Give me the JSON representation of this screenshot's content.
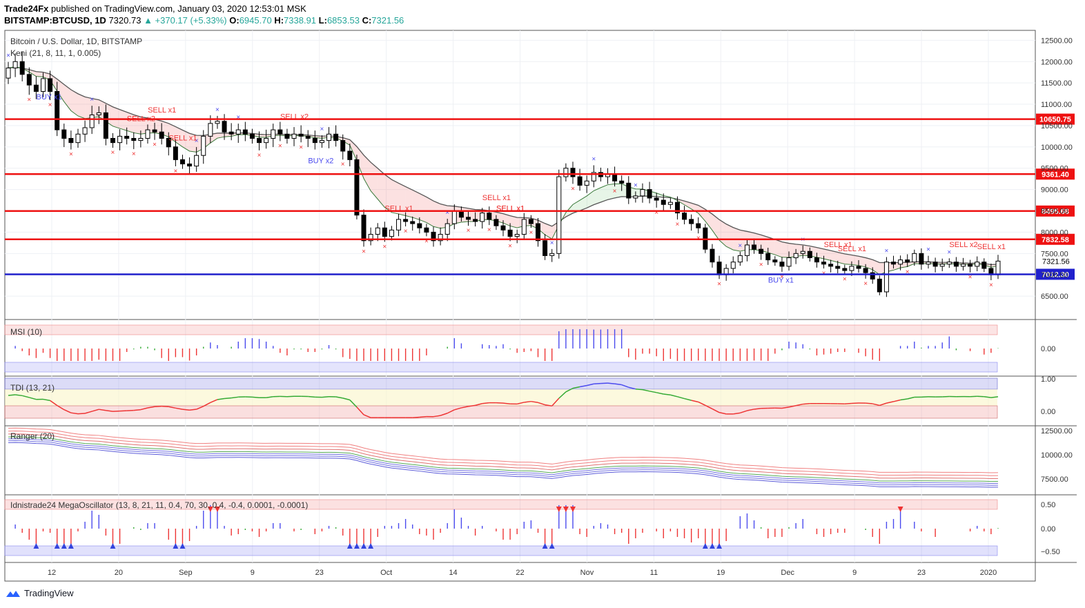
{
  "header": {
    "publisher": "Trade24Fx",
    "published_text": "published on TradingView.com, January 03, 2020 12:53:01 MSK",
    "symbol": "BITSTAMP:BTCUSD, 1D",
    "last": "7320.73",
    "change": "▲ +370.17 (+5.33%)",
    "o_label": "O:",
    "o_value": "6945.70",
    "h_label": "H:",
    "h_value": "7338.91",
    "l_label": "L:",
    "l_value": "6853.53",
    "c_label": "C:",
    "c_value": "7321.56"
  },
  "legend": {
    "title": "Bitcoin / U.S. Dollar, 1D, BITSTAMP",
    "indicator": "Keni (21, 8, 11, 1, 0.005)"
  },
  "panes": {
    "msi": "MSI (10)",
    "tdi": "TDI (13, 21)",
    "ranger": "Ranger (20)",
    "mega": "Idnistrade24 MegaOscillator (13, 8, 21, 11, 0.4, 70, 30, 0.4, -0.4, 0.0001, -0.0001)"
  },
  "footer": {
    "brand": "TradingView"
  },
  "colors": {
    "support": "#2020cc",
    "resistance": "#ee1111",
    "up": "#4a4aee",
    "down": "#ee3333",
    "neutral": "#33aa33"
  },
  "chart_data": {
    "type": "candlestick",
    "price_axis": {
      "ylim": [
        6000,
        12700
      ],
      "ticks": [
        6500,
        7000,
        7500,
        8000,
        8500,
        9000,
        9500,
        10000,
        10500,
        11000,
        11500,
        12000,
        12500
      ],
      "tick_labels": [
        "6500.00",
        "7000.00",
        "7500.00",
        "8000.00",
        "8500.00",
        "9000.00",
        "9500.00",
        "10000.00",
        "10500.00",
        "11000.00",
        "11500.00",
        "12000.00",
        "12500.00"
      ]
    },
    "x_labels": [
      "12",
      "20",
      "Sep",
      "9",
      "23",
      "Oct",
      "14",
      "22",
      "Nov",
      "11",
      "19",
      "Dec",
      "9",
      "23",
      "2020"
    ],
    "horizontal_levels": [
      {
        "value": 10650.75,
        "label": "10650.75",
        "color": "#ee1111"
      },
      {
        "value": 9361.4,
        "label": "9361.40",
        "color": "#ee1111"
      },
      {
        "value": 8495.68,
        "label": "8495.68",
        "color": "#ee1111"
      },
      {
        "value": 7832.58,
        "label": "7832.58",
        "color": "#ee1111"
      },
      {
        "value": 7012.3,
        "label": "7012.30",
        "color": "#2020cc"
      }
    ],
    "current_price_label": "7321.56",
    "closes": [
      11850,
      12000,
      11700,
      11450,
      11300,
      11600,
      11300,
      10400,
      10200,
      10100,
      10300,
      10450,
      10750,
      10800,
      10200,
      10100,
      10250,
      10200,
      10150,
      10200,
      10400,
      10350,
      10200,
      10000,
      9700,
      9600,
      9550,
      9800,
      10250,
      10550,
      10600,
      10350,
      10300,
      10400,
      10300,
      10200,
      10100,
      10200,
      10400,
      10300,
      10200,
      10300,
      10250,
      10200,
      10100,
      10150,
      10300,
      10150,
      9900,
      9700,
      8400,
      7800,
      7950,
      8100,
      7900,
      8050,
      8300,
      8250,
      8200,
      8100,
      8000,
      7800,
      7950,
      8200,
      8500,
      8350,
      8300,
      8250,
      8450,
      8300,
      8150,
      8050,
      7900,
      7950,
      8300,
      8200,
      7800,
      7450,
      7500,
      9300,
      9500,
      9300,
      9100,
      9200,
      9400,
      9300,
      9350,
      9200,
      9150,
      8800,
      8850,
      9000,
      8800,
      8750,
      8650,
      8700,
      8450,
      8300,
      8200,
      8100,
      7600,
      7300,
      7000,
      7150,
      7300,
      7450,
      7700,
      7600,
      7500,
      7350,
      7300,
      7200,
      7400,
      7500,
      7550,
      7400,
      7300,
      7250,
      7200,
      7150,
      7100,
      7200,
      7150,
      7050,
      6900,
      6600,
      7300,
      7250,
      7350,
      7300,
      7500,
      7250,
      7300,
      7200,
      7250,
      7300,
      7200,
      7250,
      7200,
      7300,
      7150,
      7000,
      7321.56
    ],
    "annotations": [
      "SELL x2",
      "SELL x1",
      "SELL x1",
      "BUY x1",
      "SELL x2",
      "BUY x2",
      "SELL x1",
      "SELL x1",
      "SELL x1",
      "SELL x1",
      "BUY x1",
      "SELL x1",
      "SELL x1",
      "SELL x2",
      "SELL x1"
    ],
    "msi_ticks": [
      "0.00"
    ],
    "tdi_ticks": [
      "1.00",
      "0.00"
    ],
    "ranger_ticks": [
      "12500.00",
      "10000.00",
      "7500.00"
    ],
    "mega_ticks": [
      "0.50",
      "0.00",
      "−0.50"
    ]
  }
}
